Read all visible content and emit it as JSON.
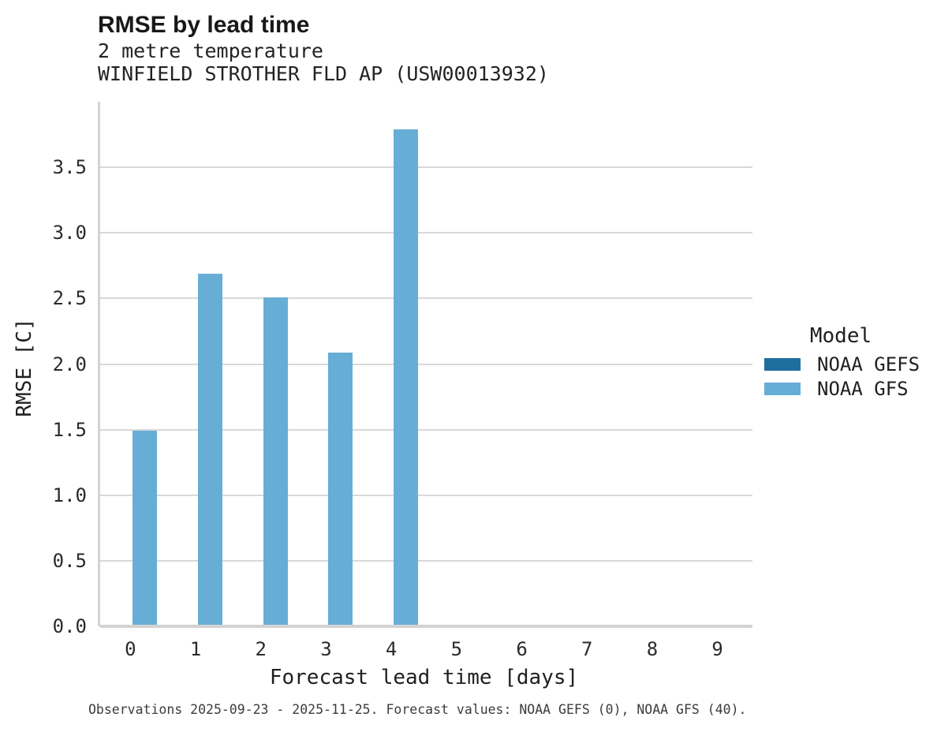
{
  "header": {
    "title": "RMSE by lead time",
    "subtitle1": "2 metre temperature",
    "subtitle2": "WINFIELD STROTHER FLD AP (USW00013932)"
  },
  "chart_data": {
    "type": "bar",
    "title": "RMSE by lead time",
    "subtitle": [
      "2 metre temperature",
      "WINFIELD STROTHER FLD AP (USW00013932)"
    ],
    "categories": [
      "0",
      "1",
      "2",
      "3",
      "4",
      "5",
      "6",
      "7",
      "8",
      "9"
    ],
    "series": [
      {
        "name": "NOAA GEFS",
        "color": "#1f6f9e",
        "values": [
          null,
          null,
          null,
          null,
          null,
          null,
          null,
          null,
          null,
          null
        ]
      },
      {
        "name": "NOAA GFS",
        "color": "#67aed6",
        "values": [
          1.49,
          2.69,
          2.51,
          2.09,
          3.79,
          null,
          null,
          null,
          null,
          null
        ]
      }
    ],
    "xlabel": "Forecast lead time [days]",
    "ylabel": "RMSE [C]",
    "ylim": [
      0,
      4
    ],
    "ytick_labels": [
      "0.0",
      "0.5",
      "1.0",
      "1.5",
      "2.0",
      "2.5",
      "3.0",
      "3.5"
    ],
    "ytick_values": [
      0.0,
      0.5,
      1.0,
      1.5,
      2.0,
      2.5,
      3.0,
      3.5
    ],
    "grid": "horizontal",
    "gridline_color": "#d9d9d9",
    "axis_color": "#d3d3d3",
    "legend_position": "right"
  },
  "legend": {
    "title": "Model",
    "items": [
      {
        "label": "NOAA GEFS",
        "color": "#1f6f9e"
      },
      {
        "label": "NOAA GFS",
        "color": "#67aed6"
      }
    ]
  },
  "caption": "Observations 2025-09-23 - 2025-11-25. Forecast values: NOAA GEFS (0), NOAA GFS (40)."
}
